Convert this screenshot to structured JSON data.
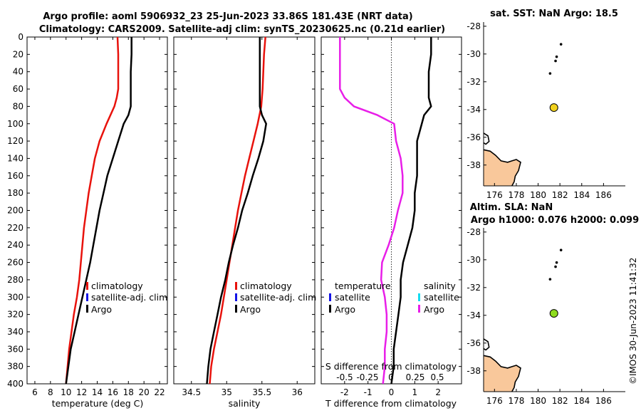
{
  "title_line1": "Argo profile: aoml 5906932_23 25-Jun-2023 33.86S 181.43E (NRT data)",
  "title_line2": "Climatology: CARS2009. Satellite-adj clim: synTS_20230625.nc (0.21d earlier)",
  "stamp": "©IMOS 30-Jun-2023 11:41:32",
  "colors": {
    "clim": "#e8120c",
    "sat": "#1414e6",
    "argo": "#000000",
    "argoS": "#e81ee8",
    "satS": "#14dcf0",
    "land": "#f9c89b",
    "float1": "#f2d21e",
    "float2": "#8edc1e"
  },
  "chart_data": [
    {
      "type": "line",
      "id": "temperature",
      "xlabel": "temperature (deg C)",
      "ylabel": "",
      "xlim": [
        5,
        23
      ],
      "ylim": [
        400,
        0
      ],
      "xticks": [
        6,
        8,
        10,
        12,
        14,
        16,
        18,
        20,
        22
      ],
      "yticks": [
        0,
        20,
        40,
        60,
        80,
        100,
        120,
        140,
        160,
        180,
        200,
        220,
        240,
        260,
        280,
        300,
        320,
        340,
        360,
        380,
        400
      ],
      "series": [
        {
          "name": "climatology",
          "color": "#e8120c",
          "depth": [
            0,
            20,
            40,
            60,
            70,
            80,
            100,
            120,
            140,
            160,
            180,
            200,
            220,
            240,
            260,
            280,
            300,
            320,
            340,
            360,
            380,
            400
          ],
          "values": [
            16.6,
            16.7,
            16.7,
            16.7,
            16.5,
            16.2,
            15.2,
            14.3,
            13.7,
            13.3,
            12.9,
            12.6,
            12.3,
            12.1,
            11.9,
            11.7,
            11.4,
            11.0,
            10.7,
            10.4,
            10.2,
            10.0
          ]
        },
        {
          "name": "Argo",
          "color": "#000000",
          "depth": [
            0,
            20,
            40,
            60,
            80,
            90,
            100,
            120,
            140,
            160,
            180,
            200,
            220,
            240,
            260,
            280,
            300,
            320,
            340,
            360,
            380,
            400
          ],
          "values": [
            18.4,
            18.4,
            18.3,
            18.3,
            18.3,
            18.0,
            17.4,
            16.7,
            16.0,
            15.3,
            14.8,
            14.3,
            13.9,
            13.5,
            13.1,
            12.6,
            12.1,
            11.6,
            11.1,
            10.6,
            10.3,
            10.0
          ]
        }
      ],
      "legend": [
        "climatology",
        "satellite-adj. clim",
        "Argo"
      ]
    },
    {
      "type": "line",
      "id": "salinity",
      "xlabel": "salinity",
      "ylabel": "",
      "xlim": [
        34.25,
        36.25
      ],
      "ylim": [
        400,
        0
      ],
      "xticks": [
        34.5,
        35,
        35.5,
        36
      ],
      "xtick_labels": [
        "34.5",
        "35",
        "35.5",
        "36"
      ],
      "series": [
        {
          "name": "climatology",
          "color": "#e8120c",
          "depth": [
            0,
            20,
            40,
            60,
            80,
            100,
            120,
            140,
            160,
            180,
            200,
            220,
            240,
            260,
            280,
            300,
            320,
            340,
            360,
            380,
            400
          ],
          "values": [
            35.55,
            35.53,
            35.52,
            35.51,
            35.49,
            35.44,
            35.38,
            35.32,
            35.26,
            35.21,
            35.16,
            35.12,
            35.08,
            35.04,
            35.0,
            34.96,
            34.92,
            34.87,
            34.82,
            34.78,
            34.76
          ]
        },
        {
          "name": "Argo",
          "color": "#000000",
          "depth": [
            0,
            20,
            40,
            60,
            80,
            90,
            100,
            120,
            140,
            160,
            180,
            200,
            220,
            240,
            260,
            280,
            300,
            320,
            340,
            360,
            380,
            400
          ],
          "values": [
            35.47,
            35.47,
            35.47,
            35.47,
            35.47,
            35.5,
            35.56,
            35.52,
            35.45,
            35.37,
            35.3,
            35.22,
            35.16,
            35.09,
            35.03,
            34.98,
            34.92,
            34.87,
            34.82,
            34.77,
            34.74,
            34.72
          ]
        }
      ],
      "legend": [
        "climatology",
        "satellite-adj. clim",
        "Argo"
      ]
    },
    {
      "type": "line",
      "id": "difference",
      "xlabel": "T difference from climatology",
      "ylabel": "",
      "xlim": [
        -3,
        3
      ],
      "ylim": [
        400,
        0
      ],
      "xticks": [
        -2,
        -1,
        0,
        1,
        2
      ],
      "top_axis_label": "S difference from climatology",
      "top_axis_ticks": [
        "-0.5",
        "-0.25",
        "0",
        "0.25",
        "0.5"
      ],
      "series": [
        {
          "name": "temperature",
          "color": "#000000",
          "depth": [
            0,
            10,
            20,
            40,
            60,
            70,
            80,
            90,
            100,
            120,
            140,
            160,
            180,
            200,
            220,
            240,
            260,
            280,
            300,
            320,
            340,
            360,
            380,
            400
          ],
          "values": [
            1.7,
            1.7,
            1.7,
            1.6,
            1.6,
            1.6,
            1.7,
            1.4,
            1.3,
            1.1,
            1.1,
            1.1,
            1.0,
            1.0,
            0.9,
            0.7,
            0.5,
            0.4,
            0.4,
            0.3,
            0.2,
            0.1,
            0.1,
            0.0
          ]
        },
        {
          "name": "salinity",
          "color": "#e81ee8",
          "depth": [
            0,
            20,
            40,
            60,
            70,
            80,
            90,
            100,
            120,
            140,
            160,
            180,
            200,
            220,
            240,
            260,
            280,
            300,
            320,
            340,
            360,
            380,
            400
          ],
          "values": [
            -0.55,
            -0.55,
            -0.55,
            -0.55,
            -0.5,
            -0.4,
            -0.15,
            0.03,
            0.05,
            0.1,
            0.12,
            0.12,
            0.07,
            0.03,
            -0.03,
            -0.1,
            -0.11,
            -0.07,
            -0.05,
            -0.05,
            -0.07,
            -0.07,
            -0.09
          ]
        }
      ],
      "legend_left": [
        "temperature",
        "satellite",
        "Argo"
      ],
      "legend_right": [
        "salinity",
        "satellite",
        "Argo"
      ]
    },
    {
      "type": "scatter",
      "id": "map_sst",
      "title": "sat. SST: NaN Argo: 18.5",
      "xlim": [
        175,
        188
      ],
      "ylim": [
        -39.5,
        -27.7
      ],
      "xticks": [
        176,
        178,
        180,
        182,
        184,
        186
      ],
      "yticks": [
        -28,
        -30,
        -32,
        -34,
        -36,
        -38
      ],
      "track": {
        "lon": [
          182.1,
          181.7,
          181.6,
          181.1
        ],
        "lat": [
          -29.3,
          -30.2,
          -30.5,
          -31.4
        ]
      },
      "float": {
        "lon": 181.45,
        "lat": -33.86,
        "color": "#f2d21e"
      }
    },
    {
      "type": "scatter",
      "id": "map_sla",
      "title_line1": "Altim. SLA: NaN",
      "title_line2": "Argo h1000: 0.076 h2000: 0.099",
      "xlim": [
        175,
        188
      ],
      "ylim": [
        -39.5,
        -27.7
      ],
      "xticks": [
        176,
        178,
        180,
        182,
        184,
        186
      ],
      "yticks": [
        -28,
        -30,
        -32,
        -34,
        -36,
        -38
      ],
      "track": {
        "lon": [
          182.1,
          181.7,
          181.6,
          181.1
        ],
        "lat": [
          -29.3,
          -30.2,
          -30.5,
          -31.4
        ]
      },
      "float": {
        "lon": 181.45,
        "lat": -33.86,
        "color": "#8edc1e"
      }
    }
  ]
}
